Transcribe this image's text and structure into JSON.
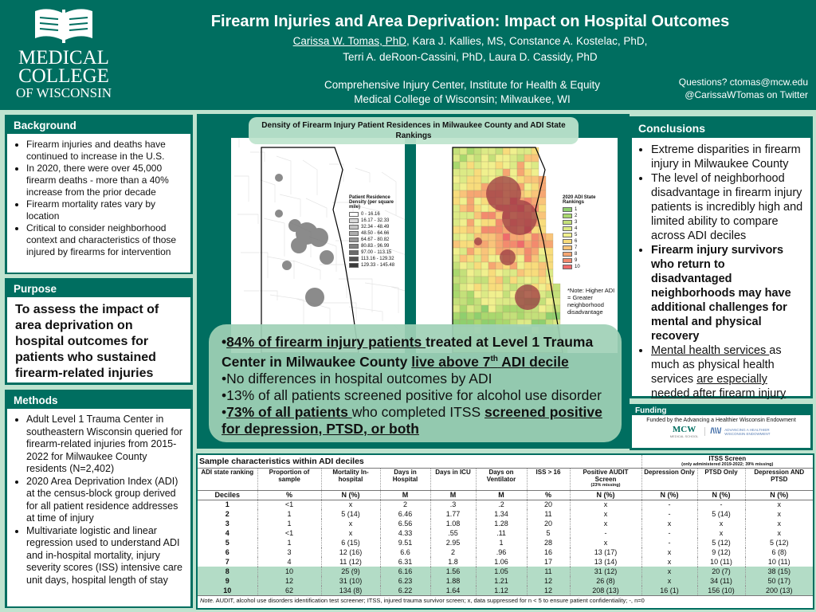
{
  "header": {
    "logo_text": [
      "MEDICAL",
      "COLLEGE",
      "OF WISCONSIN"
    ],
    "title": "Firearm Injuries and Area Deprivation: Impact on Hospital Outcomes",
    "authors_line1_first": "Carissa W. Tomas, PhD",
    "authors_line1_rest": ", Kara J. Kallies, MS, Constance A. Kostelac, PhD,",
    "authors_line2": "Terri A. deRoon-Cassini, PhD, Laura D. Cassidy, PhD",
    "affiliation1": "Comprehensive Injury Center, Institute for Health & Equity",
    "affiliation2": "Medical College of Wisconsin; Milwaukee, WI",
    "questions": "Questions? ctomas@mcw.edu",
    "twitter": "@CarissaWTomas on Twitter"
  },
  "background": {
    "heading": "Background",
    "items": [
      "Firearm injuries and deaths have continued to increase in the U.S.",
      "In 2020, there were over 45,000 firearm deaths - more than a 40% increase from the prior decade",
      "Firearm mortality rates vary by location",
      "Critical to consider neighborhood context and characteristics of those injured by firearms for intervention"
    ]
  },
  "purpose": {
    "heading": "Purpose",
    "text": "To assess the impact of area deprivation on hospital outcomes for patients who sustained firearm-related injuries"
  },
  "methods": {
    "heading": "Methods",
    "items": [
      "Adult Level 1 Trauma Center in southeastern Wisconsin queried for firearm-related injuries from 2015-2022 for Milwaukee County residents (N=2,402)",
      "2020 Area Deprivation Index (ADI) at the census-block group derived for all patient residence addresses at time of injury",
      "Multivariate logistic and linear regression used to understand ADI and in-hospital mortality, injury severity scores (ISS) intensive care unit days, hospital length of stay"
    ]
  },
  "maps": {
    "title": "Density of Firearm Injury Patient Residences in Milwaukee County and ADI State Rankings",
    "density_legend_title": "Patient Residence Density (per square mile)",
    "density_legend": [
      "0 - 16.16",
      "16.17 - 32.33",
      "32.34 - 48.49",
      "48.50 - 64.66",
      "64.67 - 80.82",
      "80.83 - 96.99",
      "97.00 - 113.15",
      "113.16 - 129.32",
      "129.33 - 145.48"
    ],
    "density_colors": [
      "#ffffff",
      "#d9d9d9",
      "#c4c4c4",
      "#adadad",
      "#969696",
      "#808080",
      "#6a6a6a",
      "#525252",
      "#3a3a3a"
    ],
    "adi_legend_title": "2020 ADI State Rankings",
    "adi_legend": [
      "1",
      "2",
      "3",
      "4",
      "5",
      "6",
      "7",
      "8",
      "9",
      "10"
    ],
    "adi_colors": [
      "#8fcf6e",
      "#a9d86e",
      "#c4e07a",
      "#dcea86",
      "#f0f08e",
      "#f8dc7c",
      "#f9c47a",
      "#f6a672",
      "#f38a6e",
      "#ef6b6b"
    ],
    "note": "*Note: Higher ADI = Greater neighborhood disadvantage"
  },
  "callout": {
    "b1_u": "84% of firearm injury patients ",
    "b1_rest": "treated at Level 1 Trauma Center in Milwaukee County ",
    "b1_u2": "live above 7",
    "b1_sup": "th",
    "b1_u3": " ADI decile",
    "b2": "No differences in hospital outcomes by ADI",
    "b3": "13% of all patients screened positive for alcohol use disorder",
    "b4_u": "73% of all patients ",
    "b4_rest": "who completed ITSS ",
    "b4_u2": "screened positive for depression, PTSD, or both"
  },
  "conclusions": {
    "heading": "Conclusions",
    "items": [
      {
        "text": "Extreme disparities in firearm injury in Milwaukee County"
      },
      {
        "text": "The level of neighborhood disadvantage in firearm injury patients is incredibly high and limited ability to compare across ADI deciles"
      },
      {
        "text": "Firearm injury survivors who return to disadvantaged neighborhoods may have additional challenges for mental and physical recovery",
        "bold": true
      },
      {
        "u1": "Mental health services ",
        "t1": "as much as physical health services ",
        "u2": "are especially needed after firearm injury"
      }
    ]
  },
  "funding": {
    "heading": "Funding",
    "text": "Funded by the Advancing a Healthier Wisconsin Endowment",
    "logo1": "MCW",
    "logo1_sub": "MEDICAL SCHOOL",
    "logo2": "ADVANCING A HEALTHIER WISCONSIN ENDOWMENT"
  },
  "table": {
    "title": "Sample characteristics within ADI deciles",
    "itss_title": "ITSS Screen",
    "itss_sub": "(only administered 2019-2022; 39% missing)",
    "columns": [
      "ADI state ranking",
      "Proportion of sample",
      "Mortality In-hospital",
      "Days in Hospital",
      "Days in ICU",
      "Days on Ventilator",
      "ISS > 16",
      "Positive AUDIT Screen",
      "Depression Only",
      "PTSD Only",
      "Depression AND PTSD"
    ],
    "audit_sub": "(23% missing)",
    "units": [
      "Deciles",
      "%",
      "N (%)",
      "M",
      "M",
      "M",
      "%",
      "N (%)",
      "N (%)",
      "N (%)",
      "N (%)"
    ],
    "rows": [
      [
        "1",
        "<1",
        "x",
        "2",
        ".3",
        ".2",
        "20",
        "x",
        "-",
        "-",
        "x"
      ],
      [
        "2",
        "1",
        "5 (14)",
        "6.46",
        "1.77",
        "1.34",
        "11",
        "x",
        "-",
        "5 (14)",
        "x"
      ],
      [
        "3",
        "1",
        "x",
        "6.56",
        "1.08",
        "1.28",
        "20",
        "x",
        "x",
        "x",
        "x"
      ],
      [
        "4",
        "<1",
        "x",
        "4.33",
        ".55",
        ".11",
        "5",
        "-",
        "-",
        "x",
        "x"
      ],
      [
        "5",
        "1",
        "6 (15)",
        "9.51",
        "2.95",
        "1",
        "28",
        "x",
        "-",
        "5 (12)",
        "5 (12)"
      ],
      [
        "6",
        "3",
        "12 (16)",
        "6.6",
        "2",
        ".96",
        "16",
        "13 (17)",
        "x",
        "9 (12)",
        "6 (8)"
      ],
      [
        "7",
        "4",
        "11 (12)",
        "6.31",
        "1.8",
        "1.06",
        "17",
        "13 (14)",
        "x",
        "10 (11)",
        "10 (11)"
      ],
      [
        "8",
        "10",
        "25 (9)",
        "6.16",
        "1.56",
        "1.05",
        "11",
        "31 (12)",
        "x",
        "20 (7)",
        "38 (15)"
      ],
      [
        "9",
        "12",
        "31 (10)",
        "6.23",
        "1.88",
        "1.21",
        "12",
        "26 (8)",
        "x",
        "34 (11)",
        "50 (17)"
      ],
      [
        "10",
        "62",
        "134 (8)",
        "6.22",
        "1.64",
        "1.12",
        "12",
        "208 (13)",
        "16 (1)",
        "156 (10)",
        "200 (13)"
      ]
    ],
    "note_italic": "Note.",
    "note": " AUDIT, alcohol use disorders identification test screener; ITSS, injured trauma survivor screen; x, data suppressed for n < 5 to ensure patient confidentiality; -, n=0"
  }
}
